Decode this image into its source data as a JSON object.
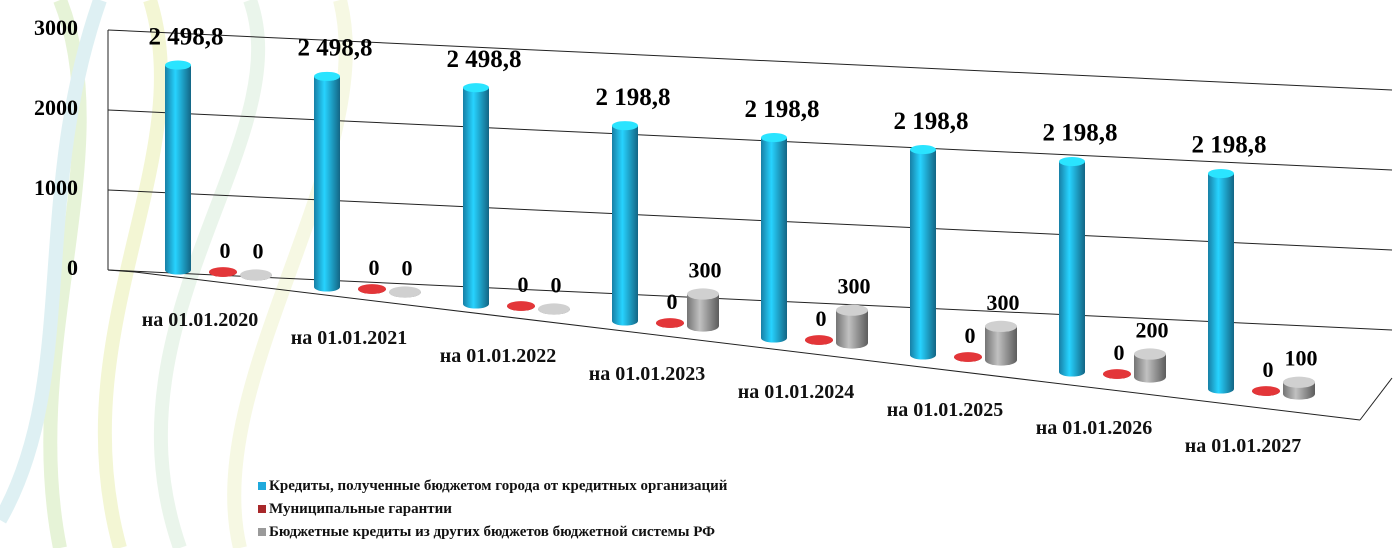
{
  "chart_data": {
    "type": "bar3d",
    "categories": [
      "на 01.01.2020",
      "на 01.01.2021",
      "на 01.01.2022",
      "на 01.01.2023",
      "на 01.01.2024",
      "на 01.01.2025",
      "на 01.01.2026",
      "на 01.01.2027"
    ],
    "series": [
      {
        "name": "Кредиты, полученные бюджетом города от кредитных организаций",
        "color": "#1fa9dc",
        "values": [
          2498.8,
          2498.8,
          2498.8,
          2198.8,
          2198.8,
          2198.8,
          2198.8,
          2198.8
        ],
        "value_labels": [
          "2 498,8",
          "2 498,8",
          "2 498,8",
          "2 198,8",
          "2 198,8",
          "2 198,8",
          "2 198,8",
          "2 198,8"
        ]
      },
      {
        "name": "Муниципальные гарантии",
        "color": "#a8282a",
        "values": [
          0,
          0,
          0,
          0,
          0,
          0,
          0,
          0
        ]
      },
      {
        "name": "Бюджетные кредиты из других бюджетов бюджетной системы РФ",
        "color": "#9a9a9a",
        "values": [
          0,
          0,
          0,
          300,
          300,
          300,
          200,
          100
        ]
      }
    ],
    "ylim": [
      0,
      3000
    ],
    "yticks": [
      0,
      1000,
      2000,
      3000
    ],
    "grid": true
  }
}
